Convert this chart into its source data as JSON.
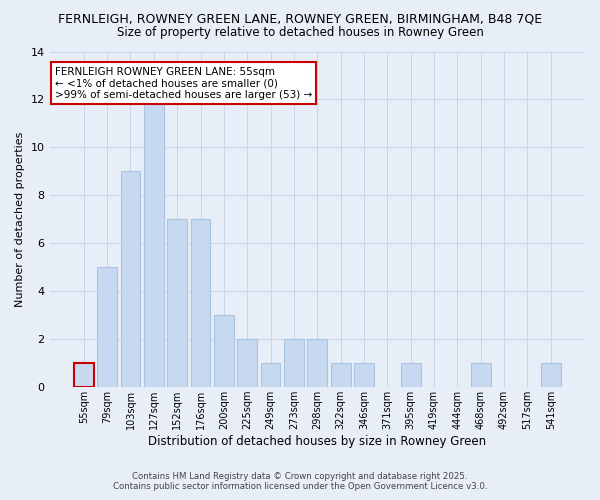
{
  "title_line1": "FERNLEIGH, ROWNEY GREEN LANE, ROWNEY GREEN, BIRMINGHAM, B48 7QE",
  "title_line2": "Size of property relative to detached houses in Rowney Green",
  "xlabel": "Distribution of detached houses by size in Rowney Green",
  "ylabel": "Number of detached properties",
  "categories": [
    "55sqm",
    "79sqm",
    "103sqm",
    "127sqm",
    "152sqm",
    "176sqm",
    "200sqm",
    "225sqm",
    "249sqm",
    "273sqm",
    "298sqm",
    "322sqm",
    "346sqm",
    "371sqm",
    "395sqm",
    "419sqm",
    "444sqm",
    "468sqm",
    "492sqm",
    "517sqm",
    "541sqm"
  ],
  "values": [
    1,
    5,
    9,
    12,
    7,
    7,
    3,
    2,
    1,
    2,
    2,
    1,
    1,
    0,
    1,
    0,
    0,
    1,
    0,
    0,
    1
  ],
  "bar_color": "#c6d9f0",
  "bar_edge_color": "#a8c4e0",
  "highlight_bar_index": 0,
  "highlight_bar_edge_color": "#cc0000",
  "background_color": "#e8eef8",
  "grid_color": "#c8d4e8",
  "annotation_text": "FERNLEIGH ROWNEY GREEN LANE: 55sqm\n← <1% of detached houses are smaller (0)\n>99% of semi-detached houses are larger (53) →",
  "annotation_box_edge_color": "#cc0000",
  "ylim": [
    0,
    14
  ],
  "yticks": [
    0,
    2,
    4,
    6,
    8,
    10,
    12,
    14
  ],
  "footer_line1": "Contains HM Land Registry data © Crown copyright and database right 2025.",
  "footer_line2": "Contains public sector information licensed under the Open Government Licence v3.0."
}
